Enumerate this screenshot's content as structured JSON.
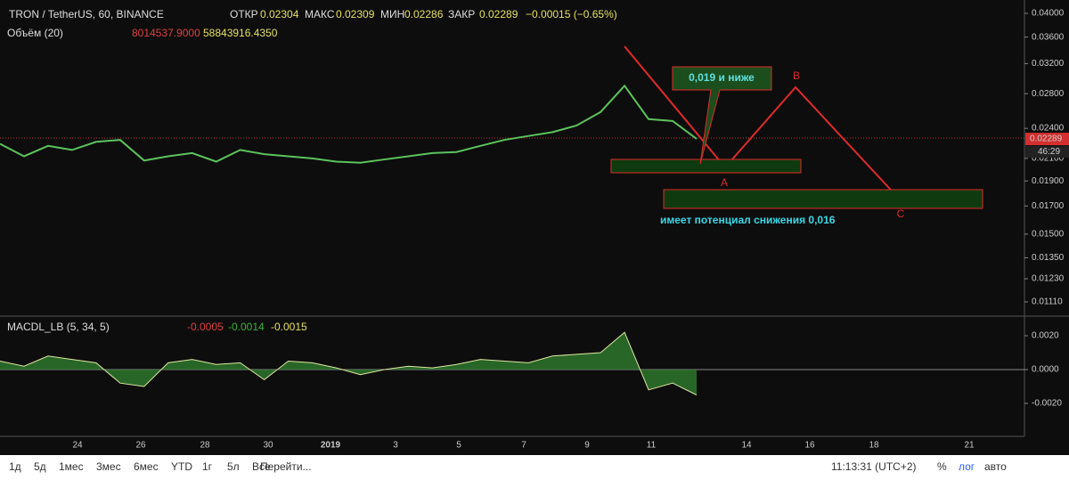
{
  "header": {
    "symbol": "TRON / TetherUS, 60, BINANCE",
    "open_label": "ОТКР",
    "open": "0.02304",
    "high_label": "МАКС",
    "high": "0.02309",
    "low_label": "МИН",
    "low": "0.02286",
    "close_label": "ЗАКР",
    "close": "0.02289",
    "change": "−0.00015 (−0.65%)"
  },
  "volume": {
    "title": "Объём (20)",
    "value1": "8014537.9000",
    "value2": "58843916.4350"
  },
  "macd": {
    "title": "MACDL_LB (5, 34, 5)",
    "value1": "-0.0005",
    "value2": "-0.0014",
    "value3": "-0.0015",
    "yticks": [
      {
        "value": 0.002,
        "label": "0.0020"
      },
      {
        "value": 0,
        "label": "0.0000"
      },
      {
        "value": -0.002,
        "label": "-0.0020"
      }
    ],
    "values": [
      0.0005,
      0.0002,
      0.0008,
      0.0006,
      0.0004,
      -0.0008,
      -0.001,
      0.0004,
      0.0006,
      0.0003,
      0.0004,
      -0.0006,
      0.0005,
      0.0004,
      0.0001,
      -0.0003,
      0,
      0.0002,
      0.0001,
      0.0003,
      0.0006,
      0.0005,
      0.0004,
      0.0008,
      0.0009,
      0.001,
      0.0022,
      -0.0012,
      -0.0008,
      -0.0015
    ]
  },
  "price": {
    "log_scale": true,
    "ylim": [
      0.0111,
      0.04
    ],
    "yticks": [
      {
        "value": 0.04,
        "label": "0.04000"
      },
      {
        "value": 0.036,
        "label": "0.03600"
      },
      {
        "value": 0.032,
        "label": "0.03200"
      },
      {
        "value": 0.028,
        "label": "0.02800"
      },
      {
        "value": 0.024,
        "label": "0.02400"
      },
      {
        "value": 0.021,
        "label": "0.02100"
      },
      {
        "value": 0.019,
        "label": "0.01900"
      },
      {
        "value": 0.017,
        "label": "0.01700"
      },
      {
        "value": 0.015,
        "label": "0.01500"
      },
      {
        "value": 0.0135,
        "label": "0.01350"
      },
      {
        "value": 0.0123,
        "label": "0.01230"
      },
      {
        "value": 0.0111,
        "label": "0.01110"
      }
    ],
    "current": {
      "value": 0.02289,
      "label": "0.02289"
    },
    "countdown": "46:29",
    "closes": [
      0.0224,
      0.0212,
      0.0222,
      0.0218,
      0.0226,
      0.0228,
      0.0208,
      0.0212,
      0.0215,
      0.0207,
      0.0218,
      0.0214,
      0.0212,
      0.021,
      0.0207,
      0.0206,
      0.0209,
      0.0212,
      0.0215,
      0.0216,
      0.0222,
      0.0228,
      0.0232,
      0.0236,
      0.0243,
      0.0258,
      0.029,
      0.025,
      0.0248,
      0.0229
    ]
  },
  "x_axis": [
    "24",
    "26",
    "28",
    "30",
    "2019",
    "3",
    "5",
    "7",
    "9",
    "11",
    "14",
    "16",
    "18",
    "21"
  ],
  "annotations": {
    "callout": "0,019 и ниже",
    "a": "A",
    "b": "B",
    "c": "C",
    "note": "имеет потенциал снижения 0,016"
  },
  "toolbar": {
    "ranges": [
      "1д",
      "5д",
      "1мес",
      "3мес",
      "6мес",
      "YTD",
      "1г",
      "5л",
      "Все"
    ],
    "goto": "Перейти...",
    "time": "11:13:31 (UTC+2)",
    "percent": "%",
    "log": "лог",
    "auto": "авто"
  }
}
